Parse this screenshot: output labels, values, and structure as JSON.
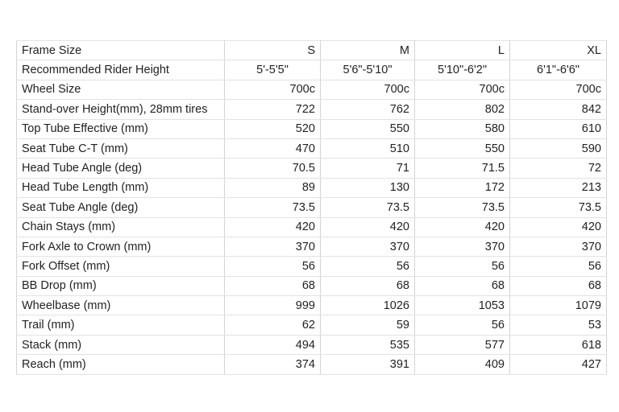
{
  "table": {
    "header": [
      "Frame Size",
      "S",
      "M",
      "L",
      "XL"
    ],
    "rows": [
      [
        "Recommended Rider Height",
        "5'-5'5\"",
        "5'6\"-5'10\"",
        "5'10\"-6'2\"",
        "6'1\"-6'6\""
      ],
      [
        "Wheel Size",
        "700c",
        "700c",
        "700c",
        "700c"
      ],
      [
        "Stand-over Height(mm), 28mm tires",
        722,
        762,
        802,
        842
      ],
      [
        "Top Tube Effective (mm)",
        520,
        550,
        580,
        610
      ],
      [
        "Seat Tube C-T (mm)",
        470,
        510,
        550,
        590
      ],
      [
        "Head Tube Angle (deg)",
        70.5,
        71,
        71.5,
        72
      ],
      [
        "Head Tube Length (mm)",
        89,
        130,
        172,
        213
      ],
      [
        "Seat Tube Angle (deg)",
        73.5,
        73.5,
        73.5,
        73.5
      ],
      [
        "Chain Stays (mm)",
        420,
        420,
        420,
        420
      ],
      [
        "Fork Axle to Crown (mm)",
        370,
        370,
        370,
        370
      ],
      [
        "Fork Offset (mm)",
        56,
        56,
        56,
        56
      ],
      [
        "BB Drop (mm)",
        68,
        68,
        68,
        68
      ],
      [
        "Wheelbase (mm)",
        999,
        1026,
        1053,
        1079
      ],
      [
        "Trail (mm)",
        62,
        59,
        56,
        53
      ],
      [
        "Stack (mm)",
        494,
        535,
        577,
        618
      ],
      [
        "Reach (mm)",
        374,
        391,
        409,
        427
      ]
    ]
  }
}
